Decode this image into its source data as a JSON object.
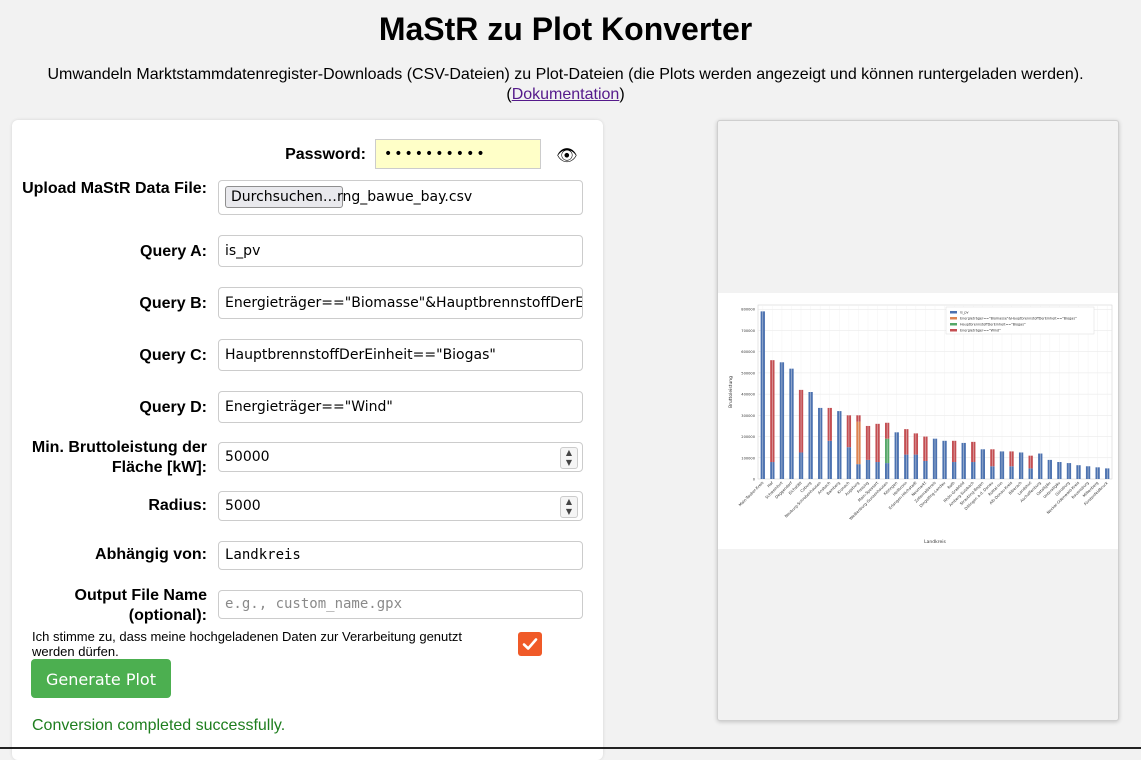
{
  "header": {
    "title": "MaStR zu Plot Konverter",
    "subtitle": "Umwandeln Marktstammdatenregister-Downloads (CSV-Dateien) zu Plot-Dateien (die Plots werden angezeigt und können runtergeladen werden).",
    "doc_link_label": "Dokumentation"
  },
  "form": {
    "password_label": "Password:",
    "password_value": "••••••••••",
    "upload_label": "Upload MaStR Data File:",
    "browse_label": "Durchsuchen…",
    "file_name": "rng_bawue_bay.csv",
    "query_a_label": "Query A:",
    "query_a_value": "is_pv",
    "query_b_label": "Query B:",
    "query_b_value": "Energieträger==\"Biomasse\"&HauptbrennstoffDerEinh",
    "query_c_label": "Query C:",
    "query_c_value": "HauptbrennstoffDerEinheit==\"Biogas\"",
    "query_d_label": "Query D:",
    "query_d_value": "Energieträger==\"Wind\"",
    "min_power_label": "Min. Bruttoleistung der Fläche [kW]:",
    "min_power_value": "50000",
    "radius_label": "Radius:",
    "radius_value": "5000",
    "depends_label": "Abhängig von:",
    "depends_value": "Landkreis",
    "output_label": "Output File Name (optional):",
    "output_placeholder": "e.g., custom_name.gpx",
    "consent_text": "Ich stimme zu, dass meine hochgeladenen Daten zur Verarbeitung genutzt werden dürfen.",
    "consent_checked": true,
    "generate_label": "Generate Plot",
    "status_text": "Conversion completed successfully."
  },
  "colors": {
    "accent_green": "#4caf50",
    "status_green": "#1e7e1e",
    "checkbox_orange": "#f05a28",
    "password_bg": "#ffffc8",
    "series_pv": "#4c72b0",
    "series_biomasse": "#dd8452",
    "series_biogas": "#55a868",
    "series_wind": "#c44e52"
  },
  "icons": {
    "eye": "eye-icon",
    "check": "check-icon",
    "spinner": "spinner-icon"
  },
  "chart_data": {
    "type": "bar",
    "stacked": true,
    "xlabel": "Landkreis",
    "ylabel": "Bruttoleistung",
    "ylim": [
      0,
      820000
    ],
    "yticks": [
      0,
      100000,
      200000,
      300000,
      400000,
      500000,
      600000,
      700000,
      800000
    ],
    "grid": true,
    "legend_position": "top-right",
    "categories": [
      "Main-Tauber-Kreis",
      "Hof",
      "Schweinfurt",
      "Deggendorf",
      "Eichstätt",
      "Coburg",
      "Neuburg-Schrobenhausen",
      "Ansbach",
      "Bamberg",
      "Kronach",
      "Augsburg",
      "Freising",
      "Main-Spessart",
      "Weißenburg-Gunzenhausen",
      "Kitzingen",
      "Heilbronn",
      "Erlangen-Höchstadt",
      "Neumarkt",
      "Zollernalbkreis",
      "Dingolfing-Landau",
      "Roth",
      "Rhön-Grabfeld",
      "Amberg-Sulzbach",
      "Straubing-Bogen",
      "Dillingen a.d. Donau",
      "Rottal-Inn",
      "Alb-Donau-Kreis",
      "Biberach",
      "Landshut",
      "Aschaffenburg",
      "Ostallgäu",
      "Unterallgäu",
      "Günzburg",
      "Neckar-Odenwald-Kreis",
      "Ravensburg",
      "Miltenberg",
      "Fürstenfeldbruck"
    ],
    "series": [
      {
        "name": "is_pv",
        "values": [
          790000,
          80000,
          550000,
          520000,
          125000,
          410000,
          335000,
          180000,
          320000,
          150000,
          70000,
          90000,
          80000,
          75000,
          220000,
          115000,
          115000,
          85000,
          190000,
          180000,
          80000,
          170000,
          80000,
          140000,
          60000,
          130000,
          60000,
          125000,
          50000,
          120000,
          90000,
          80000,
          75000,
          65000,
          60000,
          55000,
          50000
        ]
      },
      {
        "name": "Energieträger==\"Biomasse\"&HauptbrennstoffDerEinheit==\"Biogas\"",
        "values": [
          0,
          0,
          0,
          0,
          0,
          0,
          0,
          0,
          0,
          0,
          200000,
          0,
          0,
          0,
          0,
          0,
          0,
          0,
          0,
          0,
          0,
          0,
          0,
          0,
          0,
          0,
          0,
          0,
          0,
          0,
          0,
          0,
          0,
          0,
          0,
          0,
          0
        ]
      },
      {
        "name": "HauptbrennstoffDerEinheit==\"Biogas\"",
        "values": [
          0,
          0,
          0,
          0,
          0,
          0,
          0,
          0,
          0,
          0,
          0,
          0,
          0,
          115000,
          0,
          0,
          0,
          0,
          0,
          0,
          0,
          0,
          0,
          0,
          0,
          0,
          0,
          0,
          0,
          0,
          0,
          0,
          0,
          0,
          0,
          0,
          0
        ]
      },
      {
        "name": "Energieträger==\"Wind\"",
        "values": [
          0,
          480000,
          0,
          0,
          295000,
          0,
          0,
          155000,
          0,
          150000,
          30000,
          160000,
          180000,
          75000,
          0,
          120000,
          100000,
          115000,
          0,
          0,
          100000,
          0,
          95000,
          0,
          80000,
          0,
          70000,
          0,
          60000,
          0,
          0,
          0,
          0,
          0,
          0,
          0,
          0
        ]
      }
    ]
  }
}
